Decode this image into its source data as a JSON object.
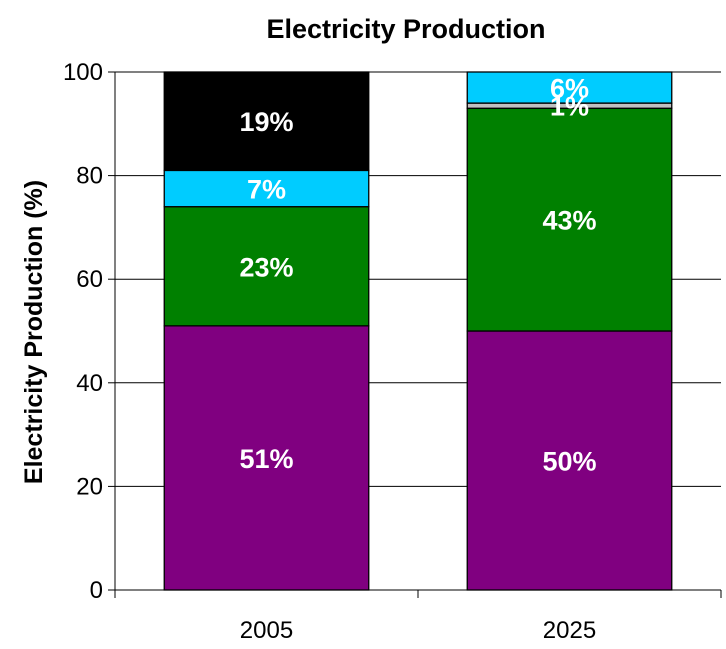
{
  "chart_data": {
    "type": "bar",
    "stacked": true,
    "title": "Electricity Production",
    "ylabel": "Electricity Production (%)",
    "xlabel": "",
    "ylim": [
      0,
      100
    ],
    "yticks": [
      "0",
      "20",
      "40",
      "60",
      "80",
      "100"
    ],
    "categories": [
      "2005",
      "2025"
    ],
    "bars": [
      {
        "category": "2005",
        "segments": [
          {
            "value": 51,
            "label": "51%",
            "color": "#800080"
          },
          {
            "value": 23,
            "label": "23%",
            "color": "#008000"
          },
          {
            "value": 7,
            "label": "7%",
            "color": "#00CCFF"
          },
          {
            "value": 19,
            "label": "19%",
            "color": "#000000"
          }
        ]
      },
      {
        "category": "2025",
        "segments": [
          {
            "value": 50,
            "label": "50%",
            "color": "#800080"
          },
          {
            "value": 43,
            "label": "43%",
            "color": "#008000"
          },
          {
            "value": 1,
            "label": "1%",
            "color": "#C0C0C0"
          },
          {
            "value": 6,
            "label": "6%",
            "color": "#00CCFF"
          }
        ]
      }
    ]
  }
}
